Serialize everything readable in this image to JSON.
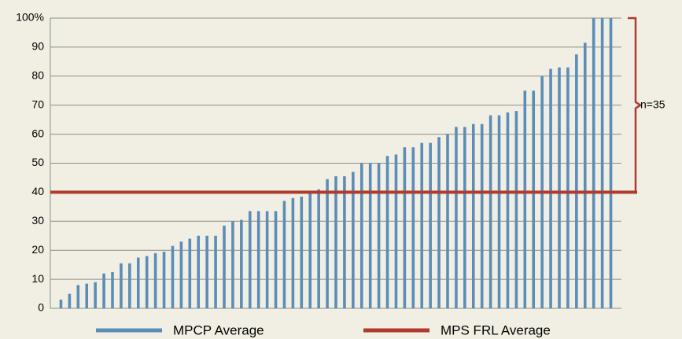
{
  "chart_data": {
    "type": "bar",
    "series": [
      {
        "name": "MPCP Average",
        "color": "#5b8db8",
        "values": [
          3,
          5,
          8,
          8.5,
          9,
          12,
          12.5,
          15.5,
          15.5,
          17.5,
          18,
          19,
          19.5,
          21.5,
          23,
          24,
          25,
          25,
          25,
          28.5,
          30,
          30.5,
          33.5,
          33.5,
          33.5,
          33.5,
          37,
          38,
          38.5,
          40,
          41,
          44.5,
          45.5,
          45.5,
          47,
          50,
          50,
          50,
          52.5,
          53,
          55.5,
          55.5,
          57,
          57,
          59,
          60,
          62.5,
          62.5,
          63.5,
          63.5,
          66.5,
          66.5,
          67.5,
          68,
          75,
          75,
          80,
          82.5,
          83,
          83,
          87.5,
          91.5,
          100,
          100,
          100
        ]
      }
    ],
    "reference_lines": [
      {
        "name": "MPS FRL Average",
        "color": "#b03a2e",
        "value": 40
      }
    ],
    "annotations": [
      {
        "text": "n=35",
        "range": [
          40,
          100
        ],
        "color": "#b03a2e"
      }
    ],
    "ylim": [
      0,
      100
    ],
    "yticks": [
      0,
      10,
      20,
      30,
      40,
      50,
      60,
      70,
      80,
      90,
      {
        "value": 100,
        "label": "100%"
      }
    ],
    "grid": true
  }
}
